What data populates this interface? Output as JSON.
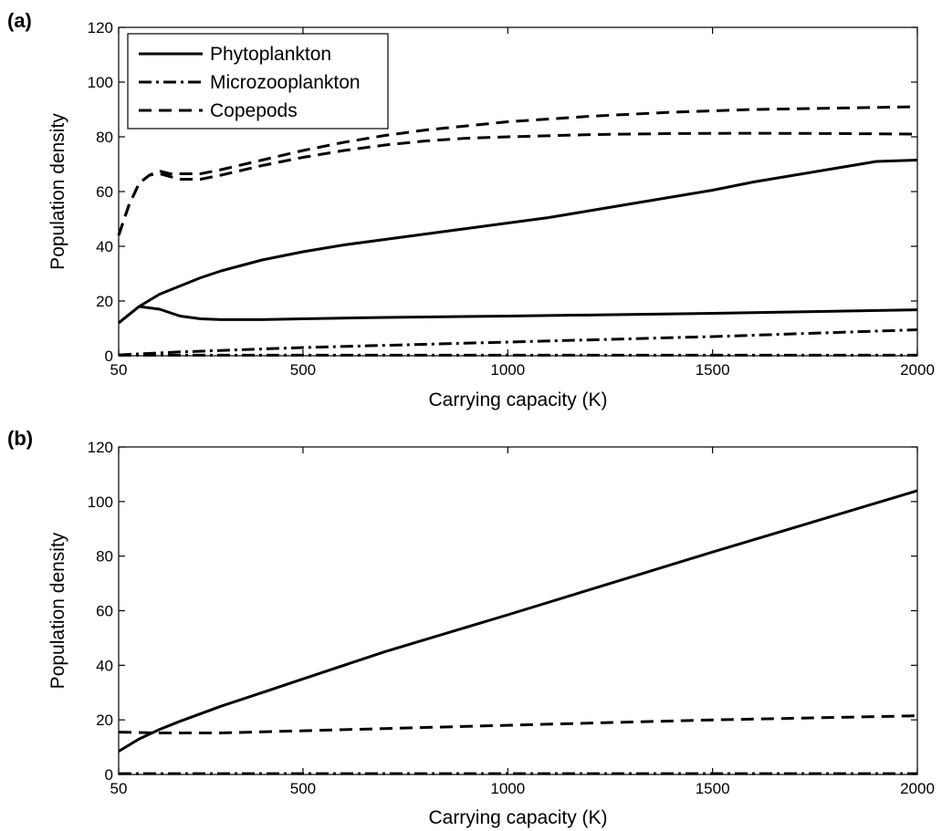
{
  "chart_data": [
    {
      "type": "line",
      "panel_label": "(a)",
      "xlabel": "Carrying capacity (K)",
      "ylabel": "Population density",
      "xlim": [
        50,
        2000
      ],
      "ylim": [
        0,
        120
      ],
      "xticks": [
        50,
        500,
        1000,
        1500,
        2000
      ],
      "yticks": [
        0,
        20,
        40,
        60,
        80,
        100,
        120
      ],
      "grid": false,
      "legend_position": "top-left",
      "legend": [
        {
          "label": "Phytoplankton",
          "style": "solid"
        },
        {
          "label": "Microzooplankton",
          "style": "dashdot"
        },
        {
          "label": "Copepods",
          "style": "dashed"
        }
      ],
      "series": [
        {
          "name": "Phytoplankton",
          "style": "solid",
          "x": [
            50,
            100,
            150,
            200,
            250,
            300,
            350,
            400,
            500,
            600,
            700,
            800,
            900,
            1000,
            1100,
            1200,
            1300,
            1400,
            1500,
            1600,
            1700,
            1800,
            1900,
            2000
          ],
          "y": [
            12,
            18,
            22.5,
            25.5,
            28.5,
            31,
            33,
            35,
            38,
            40.5,
            42.5,
            44.5,
            46.5,
            48.5,
            50.5,
            53,
            55.5,
            58,
            60.5,
            63.5,
            66,
            68.5,
            71,
            71.5
          ]
        },
        {
          "name": "Phytoplankton",
          "style": "solid",
          "x": [
            50,
            100,
            150,
            200,
            250,
            300,
            400,
            500,
            700,
            1000,
            1500,
            2000
          ],
          "y": [
            12,
            18,
            17,
            14.5,
            13.5,
            13.2,
            13.2,
            13.5,
            14,
            14.5,
            15.5,
            16.8
          ]
        },
        {
          "name": "Microzooplankton",
          "style": "dashdot",
          "x": [
            50,
            200,
            500,
            1000,
            1500,
            2000
          ],
          "y": [
            0.3,
            1.4,
            3,
            5,
            7,
            9.5
          ]
        },
        {
          "name": "Microzooplankton",
          "style": "dashdot",
          "x": [
            50,
            2000
          ],
          "y": [
            0.2,
            0.2
          ]
        },
        {
          "name": "Copepods",
          "style": "dashed",
          "x": [
            50,
            75,
            100,
            125,
            150,
            175,
            200,
            250,
            300,
            400,
            500,
            600,
            700,
            800,
            900,
            1000,
            1200,
            1400,
            1600,
            1800,
            2000
          ],
          "y": [
            44,
            55,
            63,
            66,
            67.5,
            66.5,
            66.5,
            66.5,
            68,
            71.5,
            75,
            78,
            80.5,
            82.5,
            84,
            85.5,
            87.5,
            89,
            90,
            90.5,
            91
          ]
        },
        {
          "name": "Copepods",
          "style": "dashed",
          "x": [
            50,
            75,
            100,
            125,
            150,
            175,
            200,
            250,
            300,
            400,
            500,
            600,
            700,
            800,
            900,
            1000,
            1200,
            1400,
            1600,
            1800,
            2000
          ],
          "y": [
            44,
            55,
            63,
            66,
            66.5,
            65.5,
            64.5,
            64.5,
            66,
            69.5,
            72.5,
            75,
            77,
            78.5,
            79.5,
            80,
            80.8,
            81.2,
            81.3,
            81.2,
            81
          ]
        }
      ]
    },
    {
      "type": "line",
      "panel_label": "(b)",
      "xlabel": "Carrying capacity (K)",
      "ylabel": "Population density",
      "xlim": [
        50,
        2000
      ],
      "ylim": [
        0,
        120
      ],
      "xticks": [
        50,
        500,
        1000,
        1500,
        2000
      ],
      "yticks": [
        0,
        20,
        40,
        60,
        80,
        100,
        120
      ],
      "grid": false,
      "series": [
        {
          "name": "Phytoplankton",
          "style": "solid",
          "x": [
            50,
            100,
            150,
            200,
            300,
            400,
            500,
            700,
            1000,
            1500,
            2000
          ],
          "y": [
            8.5,
            13,
            16.5,
            19.5,
            25,
            30,
            35,
            45,
            58.5,
            81.5,
            104
          ]
        },
        {
          "name": "Microzooplankton",
          "style": "dashdot",
          "x": [
            50,
            2000
          ],
          "y": [
            0.3,
            0.3
          ]
        },
        {
          "name": "Copepods",
          "style": "dashed",
          "x": [
            50,
            150,
            300,
            500,
            1000,
            1500,
            2000
          ],
          "y": [
            15.5,
            15.2,
            15.2,
            16,
            18,
            20,
            21.5
          ]
        }
      ]
    }
  ]
}
